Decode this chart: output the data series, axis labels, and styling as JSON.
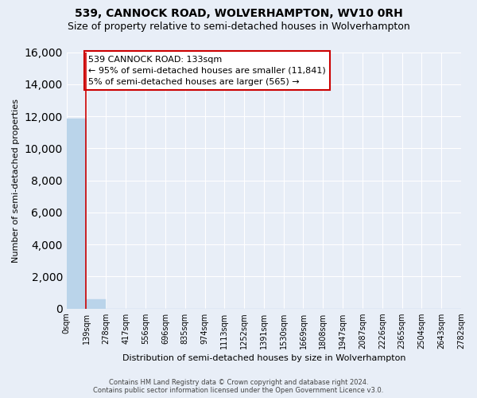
{
  "title": "539, CANNOCK ROAD, WOLVERHAMPTON, WV10 0RH",
  "subtitle": "Size of property relative to semi-detached houses in Wolverhampton",
  "xlabel": "Distribution of semi-detached houses by size in Wolverhampton",
  "ylabel": "Number of semi-detached properties",
  "footnote1": "Contains HM Land Registry data © Crown copyright and database right 2024.",
  "footnote2": "Contains public sector information licensed under the Open Government Licence v3.0.",
  "bar_edges": [
    0,
    139,
    278,
    417,
    556,
    696,
    835,
    974,
    1113,
    1252,
    1391,
    1530,
    1669,
    1808,
    1947,
    2087,
    2226,
    2365,
    2504,
    2643,
    2782
  ],
  "bar_heights": [
    11841,
    565,
    0,
    0,
    0,
    0,
    0,
    0,
    0,
    0,
    0,
    0,
    0,
    0,
    0,
    0,
    0,
    0,
    0,
    0
  ],
  "bar_color": "#bad4ea",
  "bar_edgecolor": "#bad4ea",
  "property_line_x": 133,
  "property_line_color": "#cc0000",
  "annotation_line1": "539 CANNOCK ROAD: 133sqm",
  "annotation_line2": "← 95% of semi-detached houses are smaller (11,841)",
  "annotation_line3": "5% of semi-detached houses are larger (565) →",
  "annotation_box_color": "#ffffff",
  "annotation_box_edgecolor": "#cc0000",
  "ylim": [
    0,
    16000
  ],
  "yticks": [
    0,
    2000,
    4000,
    6000,
    8000,
    10000,
    12000,
    14000,
    16000
  ],
  "xlim": [
    0,
    2782
  ],
  "bg_color": "#e8eef7",
  "plot_bg_color": "#e8eef7",
  "grid_color": "#ffffff",
  "title_fontsize": 10,
  "subtitle_fontsize": 9,
  "tick_label_fontsize": 7,
  "ylabel_fontsize": 8,
  "xlabel_fontsize": 8,
  "footnote_fontsize": 6,
  "annotation_fontsize": 8
}
